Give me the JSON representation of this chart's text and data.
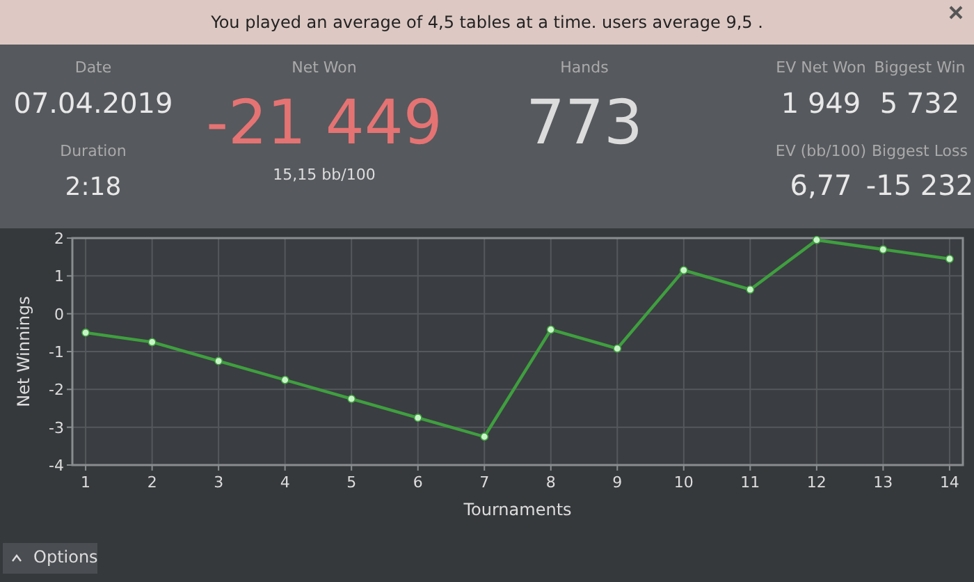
{
  "chart_data": {
    "type": "line",
    "xlabel": "Tournaments",
    "ylabel": "Net Winnings",
    "x": [
      1,
      2,
      3,
      4,
      5,
      6,
      7,
      8,
      9,
      10,
      11,
      12,
      13,
      14
    ],
    "series": [
      {
        "color": "#3f9f3f",
        "values": [
          -0.5,
          -0.75,
          -1.25,
          -1.75,
          -2.25,
          -2.75,
          -3.25,
          -0.42,
          -0.92,
          1.15,
          0.64,
          1.95,
          1.7,
          1.45
        ]
      }
    ],
    "xlim": [
      0.8,
      14.2
    ],
    "xticks": [
      1,
      2,
      3,
      4,
      5,
      6,
      7,
      8,
      9,
      10,
      11,
      12,
      13,
      14
    ],
    "ylim": [
      -4,
      2
    ],
    "yticks": [
      -4,
      -3,
      -2,
      -1,
      0,
      1,
      2
    ],
    "grid": true,
    "marker": "circle",
    "line_style": "solid",
    "annotations": [
      "You played an average of 4,5 tables at a time.  users average 9,5 .",
      "Date",
      "07.04.2019",
      "Duration",
      "2:18",
      "Net Won",
      "-21 449",
      "15,15 bb/100",
      "Hands",
      "773",
      "EV Net Won",
      "1 949",
      "Biggest Win",
      "5 732",
      "EV (bb/100)",
      "6,77",
      "Biggest Loss",
      "-15 232",
      "Options"
    ]
  }
}
